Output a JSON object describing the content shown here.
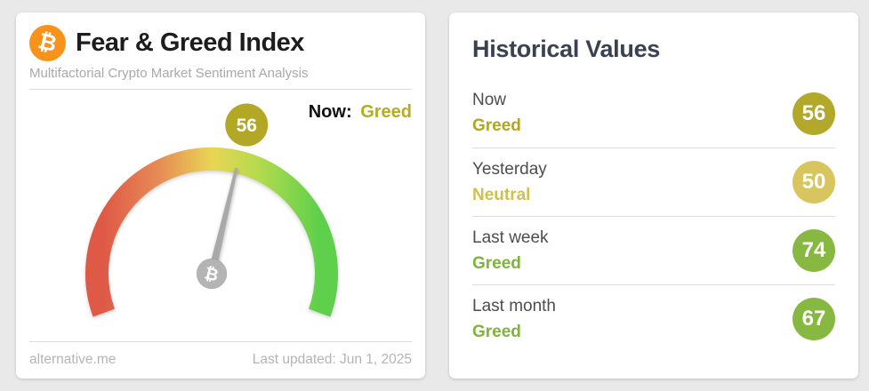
{
  "index_card": {
    "title": "Fear & Greed Index",
    "subtitle": "Multifactorial Crypto Market Sentiment Analysis",
    "bitcoin_glyph": "₿",
    "now_label": "Now:",
    "now_sentiment": "Greed",
    "gauge": {
      "value": 56,
      "min": 0,
      "max": 100,
      "sweep_degrees": 220,
      "badge_color": "#b2a826",
      "needle_color": "#a9a9a9",
      "arc_colors": [
        "#de5a47",
        "#e68a55",
        "#e9d553",
        "#b4da4e",
        "#5ed04b"
      ]
    },
    "footer": {
      "source": "alternative.me",
      "last_updated": "Last updated: Jun 1, 2025"
    },
    "colors": {
      "now_sentiment": "#b6ac1e",
      "bitcoin_orange": "#f7931a"
    }
  },
  "historical_card": {
    "title": "Historical Values",
    "rows": [
      {
        "label": "Now",
        "sentiment": "Greed",
        "value": "56",
        "badge_color": "#b2a82a",
        "sentiment_color": "#b1a71d"
      },
      {
        "label": "Yesterday",
        "sentiment": "Neutral",
        "value": "50",
        "badge_color": "#d8c55e",
        "sentiment_color": "#cfc052"
      },
      {
        "label": "Last week",
        "sentiment": "Greed",
        "value": "74",
        "badge_color": "#87b841",
        "sentiment_color": "#7eb33c"
      },
      {
        "label": "Last month",
        "sentiment": "Greed",
        "value": "67",
        "badge_color": "#87b841",
        "sentiment_color": "#7eb33c"
      }
    ]
  },
  "chart_data": {
    "type": "gauge",
    "title": "Fear & Greed Index",
    "subtitle": "Multifactorial Crypto Market Sentiment Analysis",
    "value": 56,
    "classification": "Greed",
    "range": [
      0,
      100
    ],
    "scale_colors": "red (extreme fear, 0) through yellow (neutral, 50) to green (extreme greed, 100)",
    "source": "alternative.me",
    "last_updated": "Jun 1, 2025",
    "historical": [
      {
        "period": "Now",
        "value": 56,
        "classification": "Greed"
      },
      {
        "period": "Yesterday",
        "value": 50,
        "classification": "Neutral"
      },
      {
        "period": "Last week",
        "value": 74,
        "classification": "Greed"
      },
      {
        "period": "Last month",
        "value": 67,
        "classification": "Greed"
      }
    ]
  }
}
